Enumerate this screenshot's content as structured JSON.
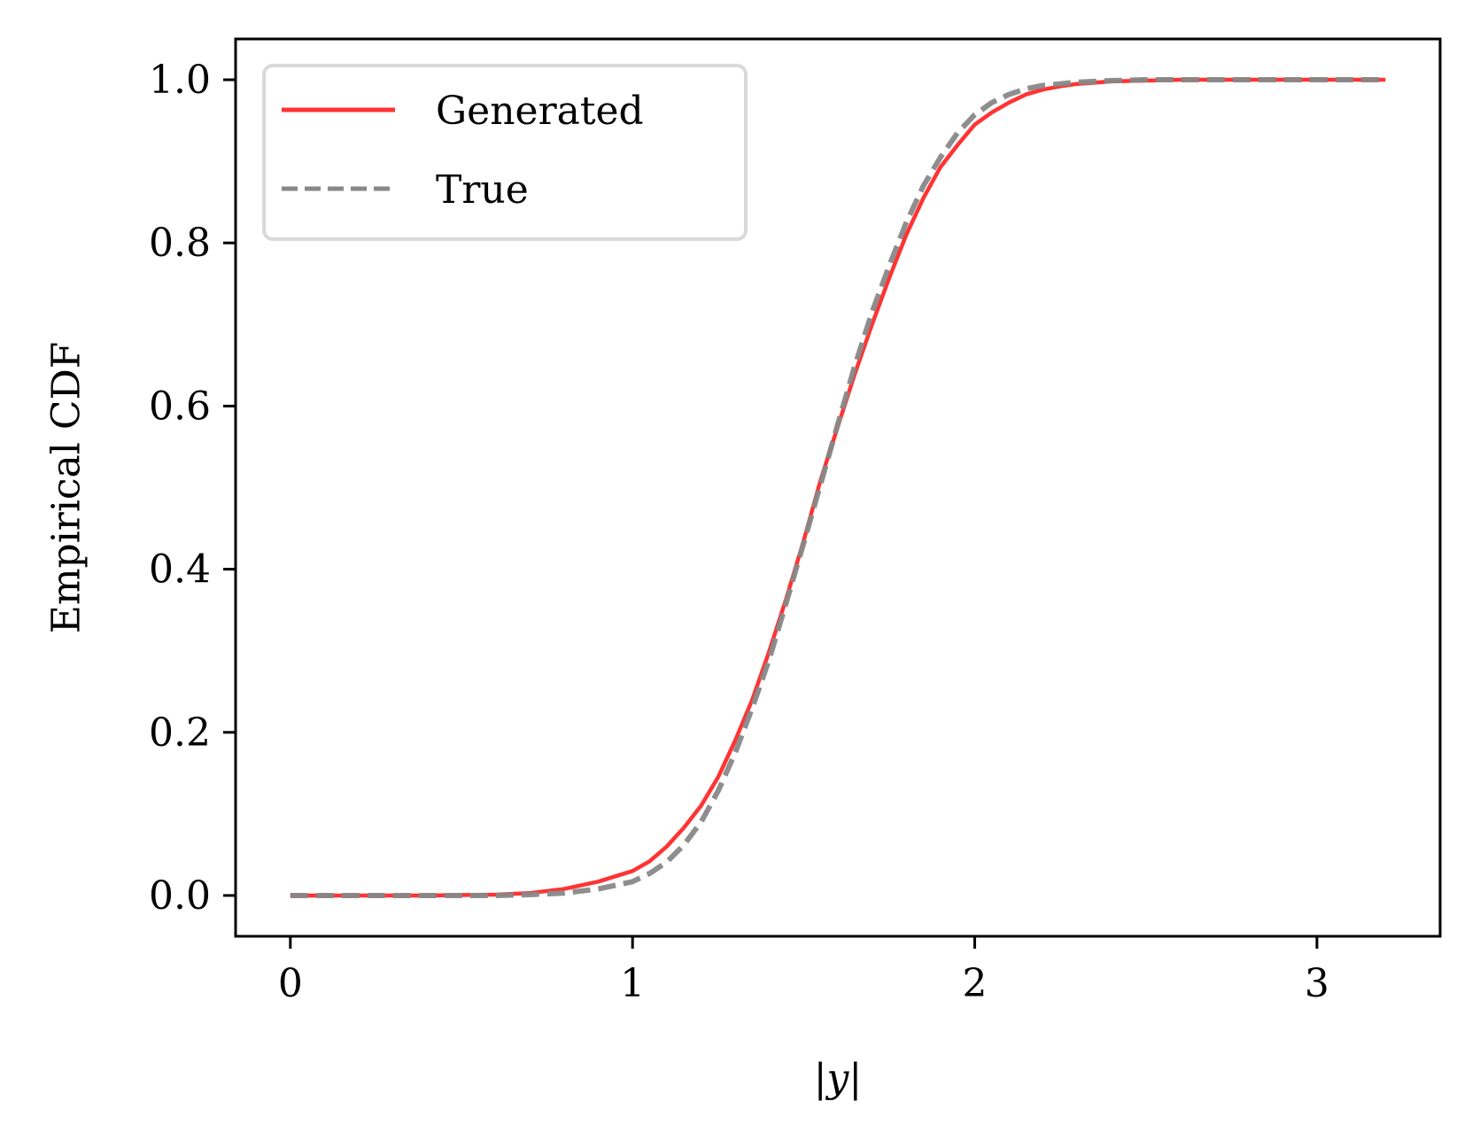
{
  "chart_data": {
    "type": "line",
    "title": "",
    "xlabel": "|y|",
    "ylabel": "Empirical CDF",
    "xlim": [
      -0.16,
      3.36
    ],
    "ylim": [
      -0.05,
      1.05
    ],
    "xticks": [
      {
        "value": 0,
        "label": "0"
      },
      {
        "value": 1,
        "label": "1"
      },
      {
        "value": 2,
        "label": "2"
      },
      {
        "value": 3,
        "label": "3"
      }
    ],
    "yticks": [
      {
        "value": 0.0,
        "label": "0.0"
      },
      {
        "value": 0.2,
        "label": "0.2"
      },
      {
        "value": 0.4,
        "label": "0.4"
      },
      {
        "value": 0.6,
        "label": "0.6"
      },
      {
        "value": 0.8,
        "label": "0.8"
      },
      {
        "value": 1.0,
        "label": "1.0"
      }
    ],
    "grid": false,
    "legend_position": "top-left",
    "series": [
      {
        "name": "Generated",
        "color": "#ff3333",
        "style": "solid",
        "x": [
          0,
          0.2,
          0.4,
          0.6,
          0.7,
          0.8,
          0.9,
          1.0,
          1.05,
          1.1,
          1.15,
          1.2,
          1.25,
          1.3,
          1.35,
          1.4,
          1.45,
          1.5,
          1.55,
          1.6,
          1.65,
          1.7,
          1.75,
          1.8,
          1.85,
          1.9,
          1.95,
          2.0,
          2.05,
          2.1,
          2.15,
          2.2,
          2.25,
          2.3,
          2.4,
          2.5,
          2.6,
          2.8,
          3.0,
          3.2
        ],
        "y": [
          0,
          0,
          0,
          0.001,
          0.003,
          0.008,
          0.017,
          0.03,
          0.042,
          0.06,
          0.083,
          0.11,
          0.145,
          0.19,
          0.24,
          0.3,
          0.365,
          0.435,
          0.51,
          0.575,
          0.64,
          0.7,
          0.757,
          0.81,
          0.855,
          0.893,
          0.92,
          0.945,
          0.96,
          0.972,
          0.982,
          0.988,
          0.992,
          0.995,
          0.998,
          0.999,
          1.0,
          1.0,
          1.0,
          1.0
        ]
      },
      {
        "name": "True",
        "color": "#888888",
        "style": "dashed",
        "x": [
          0,
          0.2,
          0.4,
          0.6,
          0.7,
          0.8,
          0.9,
          1.0,
          1.05,
          1.1,
          1.15,
          1.2,
          1.25,
          1.3,
          1.35,
          1.4,
          1.45,
          1.5,
          1.55,
          1.6,
          1.65,
          1.7,
          1.75,
          1.8,
          1.85,
          1.9,
          1.95,
          2.0,
          2.05,
          2.1,
          2.15,
          2.2,
          2.3,
          2.4,
          2.5,
          2.6,
          2.8,
          3.0,
          3.2
        ],
        "y": [
          0,
          0,
          0,
          0,
          0.001,
          0.003,
          0.008,
          0.017,
          0.027,
          0.041,
          0.062,
          0.09,
          0.128,
          0.175,
          0.23,
          0.29,
          0.36,
          0.432,
          0.505,
          0.578,
          0.65,
          0.715,
          0.772,
          0.825,
          0.87,
          0.905,
          0.935,
          0.957,
          0.972,
          0.982,
          0.989,
          0.993,
          0.997,
          0.999,
          1.0,
          1.0,
          1.0,
          1.0,
          1.0
        ]
      }
    ]
  }
}
